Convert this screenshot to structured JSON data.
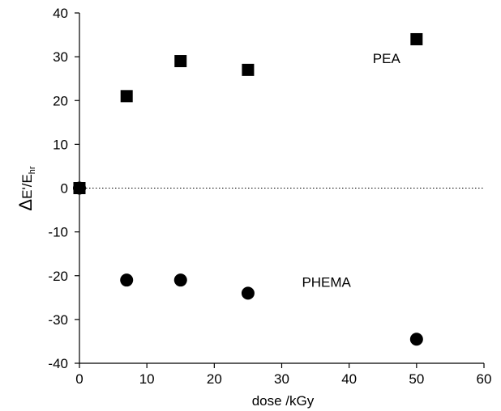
{
  "chart_data": {
    "type": "scatter",
    "xlabel": "dose /kGy",
    "ylabel": {
      "delta": "Δ",
      "main": "E'/E",
      "subscript": "hr"
    },
    "xlim": [
      0,
      60
    ],
    "ylim": [
      -40,
      40
    ],
    "xticks": [
      0,
      10,
      20,
      30,
      40,
      50,
      60
    ],
    "yticks": [
      -40,
      -30,
      -20,
      -10,
      0,
      10,
      20,
      30,
      40
    ],
    "reference_line": {
      "y": 0,
      "style": "dotted"
    },
    "series": [
      {
        "label": "PEA",
        "marker": "square",
        "color": "#000000",
        "x": [
          0,
          7,
          15,
          25,
          50
        ],
        "y": [
          0,
          21,
          29,
          27,
          34
        ]
      },
      {
        "label": "PHEMA",
        "marker": "circle",
        "color": "#000000",
        "x": [
          0,
          7,
          15,
          25,
          50
        ],
        "y": [
          0,
          -21,
          -21,
          -24,
          -34.5
        ]
      }
    ]
  }
}
